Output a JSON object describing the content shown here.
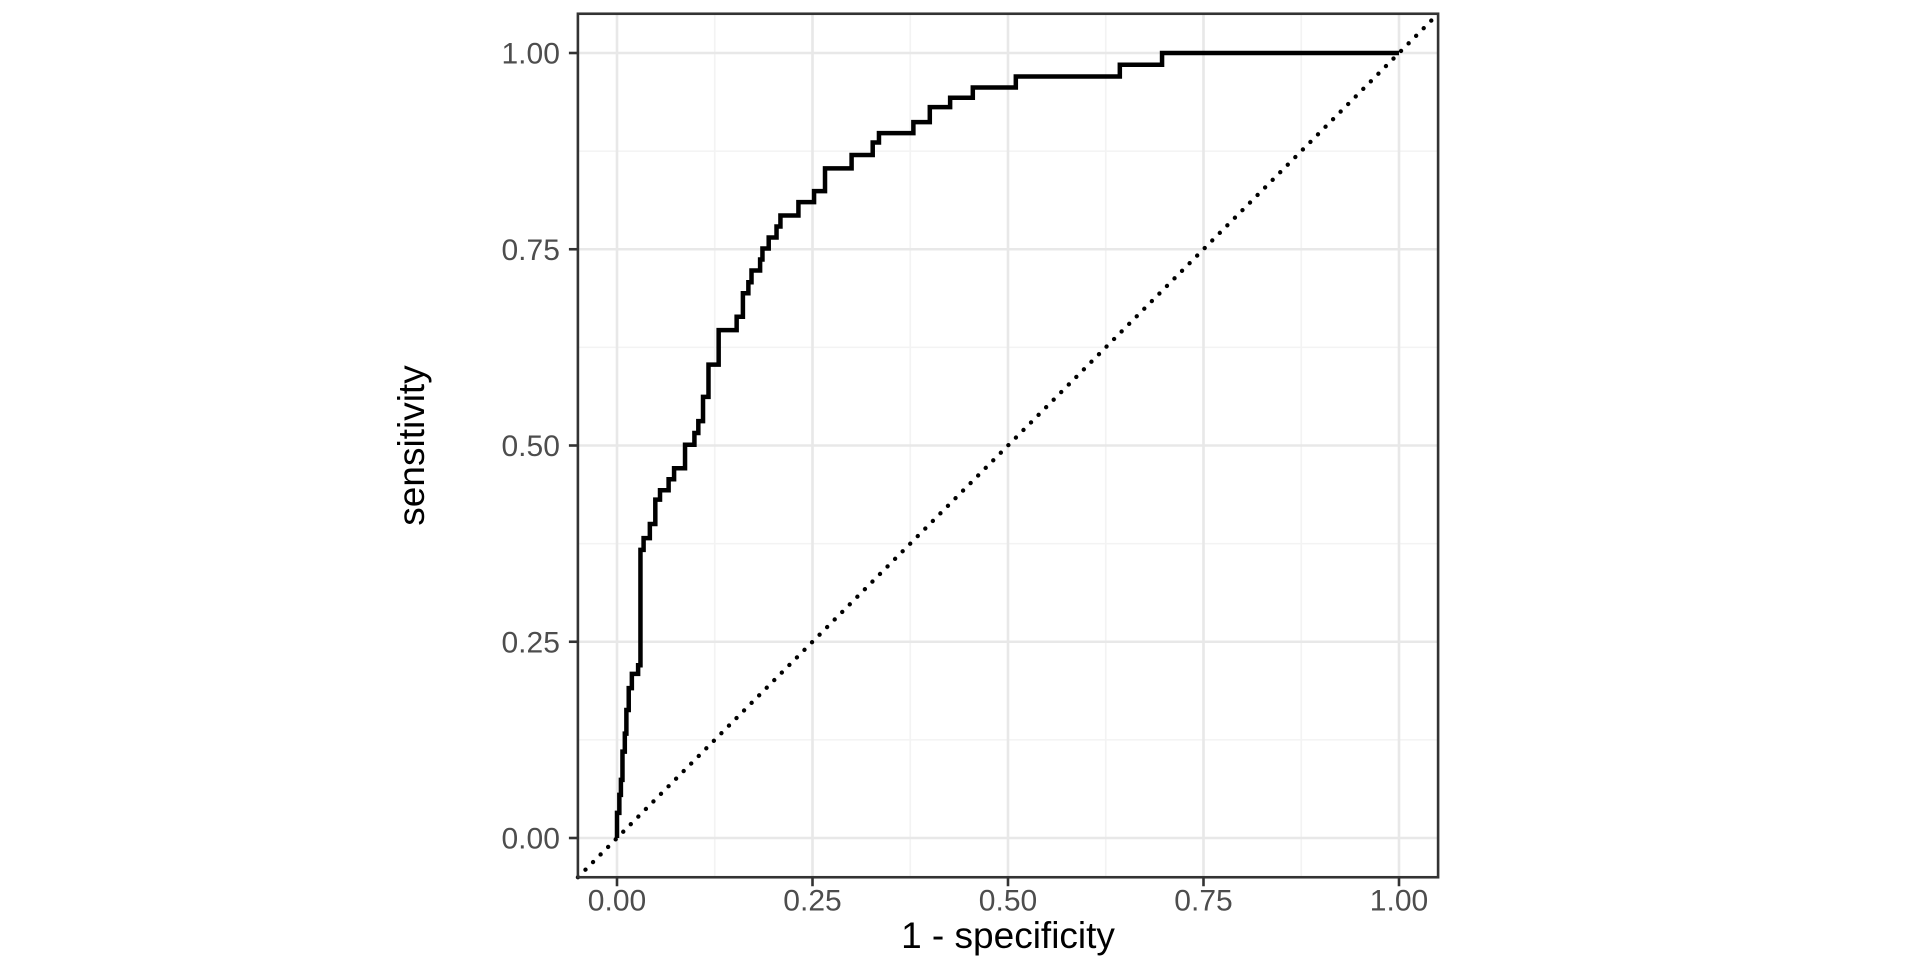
{
  "figure": {
    "background": "#ffffff"
  },
  "chart_data": {
    "type": "line",
    "subtype": "roc_step_curve",
    "title": "",
    "xlabel": "1 - specificity",
    "ylabel": "sensitivity",
    "xlim": [
      -0.05,
      1.05
    ],
    "ylim": [
      -0.05,
      1.05
    ],
    "x_ticks": [
      0.0,
      0.25,
      0.5,
      0.75,
      1.0
    ],
    "x_tick_labels": [
      "0.00",
      "0.25",
      "0.50",
      "0.75",
      "1.00"
    ],
    "y_ticks": [
      0.0,
      0.25,
      0.5,
      0.75,
      1.0
    ],
    "y_tick_labels": [
      "0.00",
      "0.25",
      "0.50",
      "0.75",
      "1.00"
    ],
    "minor_gridlines": [
      0.125,
      0.375,
      0.625,
      0.875
    ],
    "grid": "on",
    "legend": "none",
    "series": [
      {
        "name": "roc-curve",
        "style": "solid-step",
        "start": [
          0.0,
          0.0
        ],
        "knots": [
          [
            0.003,
            0.032
          ],
          [
            0.005,
            0.055
          ],
          [
            0.007,
            0.074
          ],
          [
            0.01,
            0.11
          ],
          [
            0.012,
            0.133
          ],
          [
            0.015,
            0.163
          ],
          [
            0.019,
            0.191
          ],
          [
            0.027,
            0.209
          ],
          [
            0.03,
            0.22
          ],
          [
            0.034,
            0.367
          ],
          [
            0.042,
            0.382
          ],
          [
            0.049,
            0.4
          ],
          [
            0.055,
            0.431
          ],
          [
            0.066,
            0.443
          ],
          [
            0.073,
            0.457
          ],
          [
            0.087,
            0.471
          ],
          [
            0.099,
            0.501
          ],
          [
            0.104,
            0.516
          ],
          [
            0.11,
            0.531
          ],
          [
            0.117,
            0.562
          ],
          [
            0.13,
            0.603
          ],
          [
            0.153,
            0.647
          ],
          [
            0.161,
            0.664
          ],
          [
            0.168,
            0.694
          ],
          [
            0.172,
            0.708
          ],
          [
            0.183,
            0.723
          ],
          [
            0.186,
            0.737
          ],
          [
            0.194,
            0.751
          ],
          [
            0.204,
            0.765
          ],
          [
            0.209,
            0.779
          ],
          [
            0.232,
            0.793
          ],
          [
            0.252,
            0.81
          ],
          [
            0.266,
            0.824
          ],
          [
            0.3,
            0.853
          ],
          [
            0.327,
            0.87
          ],
          [
            0.335,
            0.886
          ],
          [
            0.379,
            0.898
          ],
          [
            0.4,
            0.912
          ],
          [
            0.426,
            0.931
          ],
          [
            0.455,
            0.943
          ],
          [
            0.51,
            0.956
          ],
          [
            0.643,
            0.97
          ],
          [
            0.697,
            0.985
          ],
          [
            1.0,
            1.0
          ]
        ]
      },
      {
        "name": "chance-diagonal",
        "style": "dotted-line",
        "from": [
          -0.05,
          -0.05
        ],
        "to": [
          1.05,
          1.05
        ]
      }
    ],
    "colors": {
      "curve": "#000000",
      "diagonal": "#000000",
      "grid_major": "#e8e8e8",
      "grid_minor": "#f3f3f3",
      "panel_border": "#333333",
      "tick_mark": "#333333",
      "tick_label": "#4d4d4d",
      "axis_title": "#000000",
      "panel_background": "#ffffff"
    }
  }
}
